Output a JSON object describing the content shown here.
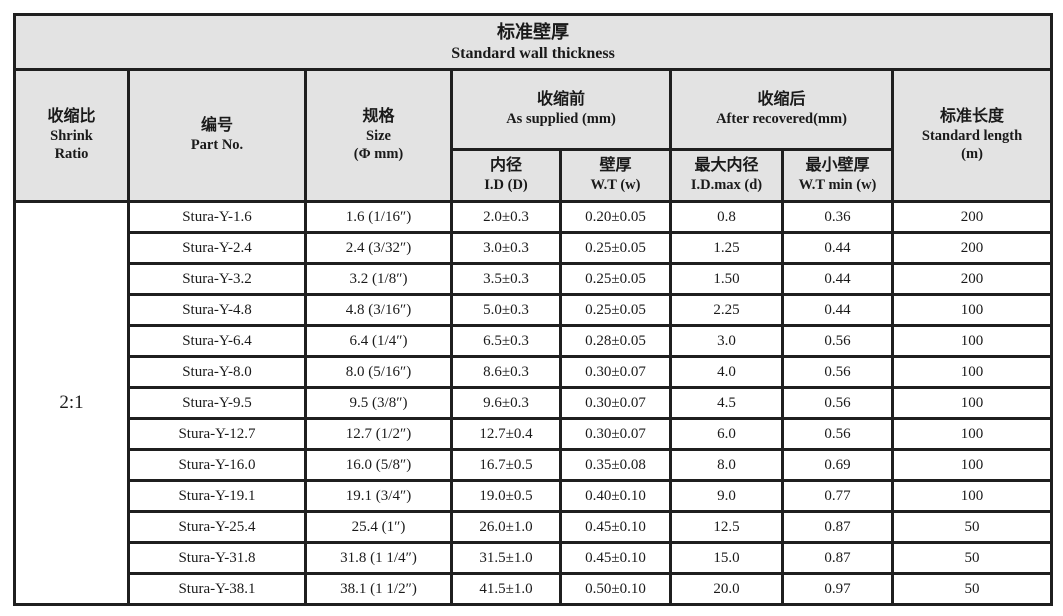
{
  "colors": {
    "header_bg": "#e3e3e3",
    "border": "#1f1f1f",
    "text": "#1a1a1a",
    "page_bg": "#ffffff"
  },
  "table": {
    "title_zh": "标准壁厚",
    "title_en": "Standard wall thickness",
    "header": {
      "shrink_zh": "收缩比",
      "shrink_en1": "Shrink",
      "shrink_en2": "Ratio",
      "part_zh": "编号",
      "part_en": "Part No.",
      "size_zh": "规格",
      "size_en": "Size",
      "size_unit": "(Φ mm)",
      "supplied_zh": "收缩前",
      "supplied_en": "As supplied (mm)",
      "id_zh": "内径",
      "id_en": "I.D (D)",
      "wt_zh": "壁厚",
      "wt_en": "W.T (w)",
      "recovered_zh": "收缩后",
      "recovered_en": "After recovered(mm)",
      "idmax_zh": "最大内径",
      "idmax_en": "I.D.max (d)",
      "wtmin_zh": "最小壁厚",
      "wtmin_en": "W.T min (w)",
      "length_zh": "标准长度",
      "length_en": "Standard length",
      "length_unit": "(m)"
    },
    "shrink_ratio": "2:1",
    "rows": [
      {
        "part": "Stura-Y-1.6",
        "size": "1.6 (1/16″)",
        "id": "2.0±0.3",
        "wt": "0.20±0.05",
        "idmax": "0.8",
        "wtmin": "0.36",
        "len": "200"
      },
      {
        "part": "Stura-Y-2.4",
        "size": "2.4 (3/32″)",
        "id": "3.0±0.3",
        "wt": "0.25±0.05",
        "idmax": "1.25",
        "wtmin": "0.44",
        "len": "200"
      },
      {
        "part": "Stura-Y-3.2",
        "size": "3.2 (1/8″)",
        "id": "3.5±0.3",
        "wt": "0.25±0.05",
        "idmax": "1.50",
        "wtmin": "0.44",
        "len": "200"
      },
      {
        "part": "Stura-Y-4.8",
        "size": "4.8 (3/16″)",
        "id": "5.0±0.3",
        "wt": "0.25±0.05",
        "idmax": "2.25",
        "wtmin": "0.44",
        "len": "100"
      },
      {
        "part": "Stura-Y-6.4",
        "size": "6.4 (1/4″)",
        "id": "6.5±0.3",
        "wt": "0.28±0.05",
        "idmax": "3.0",
        "wtmin": "0.56",
        "len": "100"
      },
      {
        "part": "Stura-Y-8.0",
        "size": "8.0 (5/16″)",
        "id": "8.6±0.3",
        "wt": "0.30±0.07",
        "idmax": "4.0",
        "wtmin": "0.56",
        "len": "100"
      },
      {
        "part": "Stura-Y-9.5",
        "size": "9.5 (3/8″)",
        "id": "9.6±0.3",
        "wt": "0.30±0.07",
        "idmax": "4.5",
        "wtmin": "0.56",
        "len": "100"
      },
      {
        "part": "Stura-Y-12.7",
        "size": "12.7 (1/2″)",
        "id": "12.7±0.4",
        "wt": "0.30±0.07",
        "idmax": "6.0",
        "wtmin": "0.56",
        "len": "100"
      },
      {
        "part": "Stura-Y-16.0",
        "size": "16.0 (5/8″)",
        "id": "16.7±0.5",
        "wt": "0.35±0.08",
        "idmax": "8.0",
        "wtmin": "0.69",
        "len": "100"
      },
      {
        "part": "Stura-Y-19.1",
        "size": "19.1 (3/4″)",
        "id": "19.0±0.5",
        "wt": "0.40±0.10",
        "idmax": "9.0",
        "wtmin": "0.77",
        "len": "100"
      },
      {
        "part": "Stura-Y-25.4",
        "size": "25.4 (1″)",
        "id": "26.0±1.0",
        "wt": "0.45±0.10",
        "idmax": "12.5",
        "wtmin": "0.87",
        "len": "50"
      },
      {
        "part": "Stura-Y-31.8",
        "size": "31.8 (1 1/4″)",
        "id": "31.5±1.0",
        "wt": "0.45±0.10",
        "idmax": "15.0",
        "wtmin": "0.87",
        "len": "50"
      },
      {
        "part": "Stura-Y-38.1",
        "size": "38.1 (1 1/2″)",
        "id": "41.5±1.0",
        "wt": "0.50±0.10",
        "idmax": "20.0",
        "wtmin": "0.97",
        "len": "50"
      }
    ]
  }
}
